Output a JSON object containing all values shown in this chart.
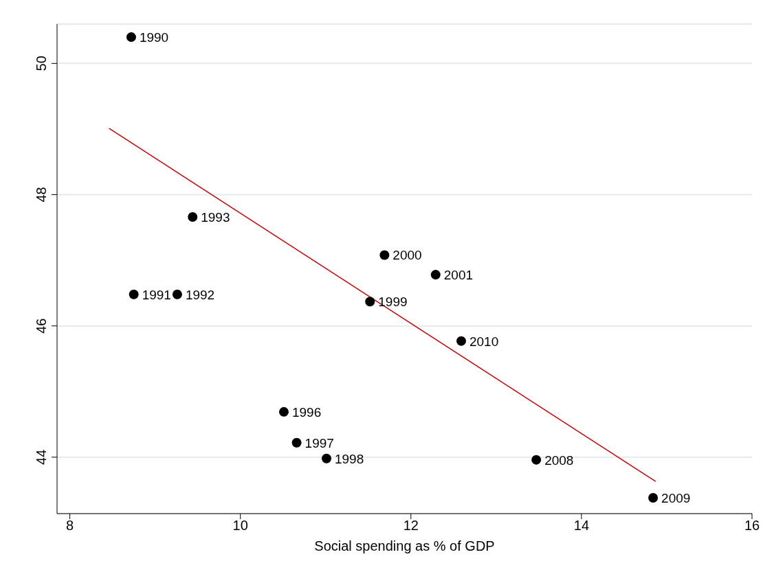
{
  "chart_data": {
    "type": "scatter",
    "xlabel": "Social spending as % of GDP",
    "xlim": [
      7.85,
      16
    ],
    "xticks": [
      8,
      10,
      12,
      14,
      16
    ],
    "ylim": [
      43.14,
      50.6
    ],
    "yticks": [
      44,
      46,
      48,
      50
    ],
    "grid": "y",
    "legend": false,
    "annotations": [
      {
        "text": "1990",
        "x": 8.72,
        "y": 50.4
      },
      {
        "text": "1991",
        "x": 8.75,
        "y": 46.48
      },
      {
        "text": "1992",
        "x": 9.26,
        "y": 46.48
      },
      {
        "text": "1993",
        "x": 9.44,
        "y": 47.66
      },
      {
        "text": "1996",
        "x": 10.51,
        "y": 44.69
      },
      {
        "text": "1997",
        "x": 10.66,
        "y": 44.22
      },
      {
        "text": "1998",
        "x": 11.01,
        "y": 43.98
      },
      {
        "text": "1999",
        "x": 11.52,
        "y": 46.37
      },
      {
        "text": "2000",
        "x": 11.69,
        "y": 47.08
      },
      {
        "text": "2001",
        "x": 12.29,
        "y": 46.78
      },
      {
        "text": "2010",
        "x": 12.59,
        "y": 45.77
      },
      {
        "text": "2008",
        "x": 13.47,
        "y": 43.96
      },
      {
        "text": "2009",
        "x": 14.84,
        "y": 43.38
      }
    ],
    "series": [
      {
        "color": "#000000",
        "marker": "circle",
        "x": [
          8.72,
          8.75,
          9.26,
          9.44,
          10.51,
          10.66,
          11.01,
          11.52,
          11.69,
          12.29,
          12.59,
          13.47,
          14.84
        ],
        "values": [
          50.4,
          46.48,
          46.48,
          47.66,
          44.69,
          44.22,
          43.98,
          46.37,
          47.08,
          46.78,
          45.77,
          43.96,
          43.38
        ]
      },
      {
        "type": "line",
        "color": "#cc0000",
        "x": [
          8.46,
          14.87
        ],
        "values": [
          49.01,
          43.63
        ]
      }
    ]
  }
}
